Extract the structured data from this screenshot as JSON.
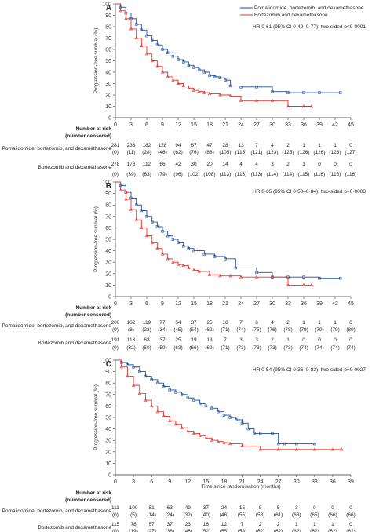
{
  "colors": {
    "pomalidomide": "#1f4e9c",
    "bortezomib": "#e8312a",
    "axis": "#333333"
  },
  "chart_data": [
    {
      "type": "line",
      "panel_label": "A",
      "ylabel": "Progression-free survival (%)",
      "xlabel": "",
      "xlim": [
        0,
        45
      ],
      "ylim": [
        0,
        100
      ],
      "xticks": [
        0,
        3,
        6,
        9,
        12,
        15,
        18,
        21,
        24,
        27,
        30,
        33,
        36,
        39,
        42,
        45
      ],
      "yticks": [
        0,
        10,
        20,
        30,
        40,
        50,
        60,
        70,
        80,
        90,
        100
      ],
      "legend": [
        "Pomalidomide, bortezomib, and dexamethasone",
        "Bortezomib and dexamethasone"
      ],
      "legend_position": "top-right",
      "annotation": "HR 0·61 (95% CI 0·49–0·77); two-sided p<0·0001",
      "series": [
        {
          "name": "Pomalidomide, bortezomib, and dexamethasone",
          "color_key": "pomalidomide",
          "x": [
            0,
            1,
            2,
            3,
            4,
            5,
            6,
            7,
            8,
            9,
            10,
            11,
            12,
            13,
            14,
            15,
            16,
            17,
            18,
            19,
            20,
            21,
            22,
            24,
            27,
            30,
            33,
            36,
            39,
            43
          ],
          "y": [
            100,
            97,
            92,
            87,
            82,
            77,
            72,
            68,
            64,
            60,
            57,
            54,
            51,
            49,
            46,
            44,
            42,
            40,
            37,
            36,
            35,
            33,
            28,
            27,
            27,
            23,
            22,
            22,
            22,
            22
          ]
        },
        {
          "name": "Bortezomib and dexamethasone",
          "color_key": "bortezomib",
          "x": [
            0,
            1,
            2,
            3,
            4,
            5,
            6,
            7,
            8,
            9,
            10,
            11,
            12,
            13,
            14,
            15,
            16,
            17,
            18,
            20,
            22,
            24,
            27,
            30,
            33,
            36,
            37.5
          ],
          "y": [
            100,
            94,
            87,
            78,
            70,
            63,
            56,
            50,
            45,
            40,
            36,
            33,
            30,
            28,
            26,
            24,
            23,
            22,
            21,
            20,
            19,
            15,
            15,
            15,
            10,
            10,
            10
          ]
        }
      ],
      "risk_table": {
        "header": [
          "Number at risk",
          "(number censored)"
        ],
        "times": [
          0,
          3,
          6,
          9,
          12,
          15,
          18,
          21,
          24,
          27,
          30,
          33,
          36,
          39,
          42,
          45
        ],
        "rows": [
          {
            "label": "Pomalidomide, bortezomib, and dexamethasone",
            "at_risk": [
              "281",
              "233",
              "182",
              "128",
              "94",
              "67",
              "47",
              "28",
              "13",
              "7",
              "4",
              "2",
              "1",
              "1",
              "1",
              "0"
            ],
            "censored": [
              "(0)",
              "(11)",
              "(28)",
              "(46)",
              "(62)",
              "(76)",
              "(88)",
              "(105)",
              "(115)",
              "(121)",
              "(123)",
              "(125)",
              "(126)",
              "(126)",
              "(126)",
              "(127)"
            ]
          },
          {
            "label": "Bortezomib and dexamethasone",
            "at_risk": [
              "278",
              "176",
              "112",
              "66",
              "42",
              "30",
              "20",
              "14",
              "4",
              "4",
              "3",
              "2",
              "1",
              "0",
              "0",
              "0"
            ],
            "censored": [
              "(0)",
              "(39)",
              "(63)",
              "(79)",
              "(96)",
              "(102)",
              "(108)",
              "(113)",
              "(113)",
              "(113)",
              "(114)",
              "(114)",
              "(115)",
              "(116)",
              "(116)",
              "(116)"
            ]
          }
        ]
      }
    },
    {
      "type": "line",
      "panel_label": "B",
      "ylabel": "Progression-free survival (%)",
      "xlabel": "",
      "xlim": [
        0,
        45
      ],
      "ylim": [
        0,
        100
      ],
      "xticks": [
        0,
        3,
        6,
        9,
        12,
        15,
        18,
        21,
        24,
        27,
        30,
        33,
        36,
        39,
        42,
        45
      ],
      "yticks": [
        0,
        10,
        20,
        30,
        40,
        50,
        60,
        70,
        80,
        90,
        100
      ],
      "annotation": "HR 0·65 (95% CI 0·50–0·84); two-sided p=0·0008",
      "series": [
        {
          "name": "",
          "color_key": "pomalidomide",
          "x": [
            0,
            1,
            2,
            3,
            4,
            5,
            6,
            7,
            8,
            9,
            10,
            11,
            12,
            13,
            14,
            15,
            17,
            19,
            21,
            23,
            27,
            30,
            33,
            36,
            39,
            43
          ],
          "y": [
            100,
            97,
            91,
            86,
            80,
            75,
            70,
            65,
            61,
            57,
            53,
            50,
            47,
            44,
            42,
            40,
            37,
            35,
            33,
            25,
            21,
            17,
            17,
            17,
            16,
            16
          ]
        },
        {
          "name": "",
          "color_key": "bortezomib",
          "x": [
            0,
            1,
            2,
            3,
            4,
            5,
            6,
            7,
            8,
            9,
            10,
            11,
            12,
            13,
            14,
            15,
            16,
            18,
            20,
            22,
            24,
            27,
            30,
            33,
            36,
            37.5
          ],
          "y": [
            100,
            93,
            85,
            76,
            67,
            60,
            53,
            47,
            42,
            37,
            33,
            30,
            28,
            27,
            25,
            23,
            22,
            19,
            18,
            18,
            17,
            17,
            17,
            10,
            10,
            10
          ]
        }
      ],
      "risk_table": {
        "header": [
          "Number at risk",
          "(number censored)"
        ],
        "times": [
          0,
          3,
          6,
          9,
          12,
          15,
          18,
          21,
          24,
          27,
          30,
          33,
          36,
          39,
          42,
          45
        ],
        "rows": [
          {
            "label": "Pomalidomide, bortezomib, and dexamethasone",
            "at_risk": [
              "200",
              "162",
              "119",
              "77",
              "54",
              "37",
              "25",
              "16",
              "7",
              "6",
              "4",
              "2",
              "1",
              "1",
              "1",
              "0"
            ],
            "censored": [
              "(0)",
              "(8)",
              "(22)",
              "(34)",
              "(45)",
              "(54)",
              "(62)",
              "(71)",
              "(74)",
              "(75)",
              "(76)",
              "(78)",
              "(79)",
              "(79)",
              "(79)",
              "(80)"
            ]
          },
          {
            "label": "Bortezomib and dexamethasone",
            "at_risk": [
              "191",
              "113",
              "63",
              "37",
              "25",
              "19",
              "13",
              "7",
              "3",
              "3",
              "2",
              "1",
              "0",
              "0",
              "0",
              "0"
            ],
            "censored": [
              "(0)",
              "(32)",
              "(50)",
              "(59)",
              "(63)",
              "(66)",
              "(69)",
              "(71)",
              "(73)",
              "(73)",
              "(73)",
              "(73)",
              "(74)",
              "(74)",
              "(74)",
              "(74)"
            ]
          }
        ]
      }
    },
    {
      "type": "line",
      "panel_label": "C",
      "ylabel": "Progression-free survival (%)",
      "xlabel": "Time since randomisation (months)",
      "xlim": [
        0,
        39
      ],
      "ylim": [
        0,
        100
      ],
      "xticks": [
        0,
        3,
        6,
        9,
        12,
        15,
        18,
        21,
        24,
        27,
        30,
        33,
        36,
        39
      ],
      "yticks": [
        0,
        10,
        20,
        30,
        40,
        50,
        60,
        70,
        80,
        90,
        100
      ],
      "annotation": "HR 0·54 (95% CI 0·36–0·82); two-sided p=0·0027",
      "series": [
        {
          "name": "",
          "color_key": "pomalidomide",
          "x": [
            0,
            1,
            2,
            3,
            4,
            5,
            6,
            7,
            8,
            9,
            10,
            11,
            12,
            13,
            14,
            15,
            16,
            17,
            18,
            19,
            20,
            21,
            22,
            23,
            24,
            26,
            27,
            28,
            30,
            33
          ],
          "y": [
            100,
            98,
            96,
            94,
            90,
            86,
            83,
            80,
            77,
            74,
            72,
            70,
            67,
            65,
            62,
            60,
            58,
            55,
            52,
            50,
            48,
            45,
            40,
            36,
            36,
            36,
            27,
            27,
            27,
            27
          ]
        },
        {
          "name": "",
          "color_key": "bortezomib",
          "x": [
            0,
            1,
            2,
            3,
            4,
            5,
            6,
            7,
            8,
            9,
            10,
            11,
            12,
            13,
            14,
            15,
            16,
            17,
            18,
            19,
            21,
            24,
            27,
            30,
            33,
            36,
            37.5
          ],
          "y": [
            100,
            94,
            86,
            78,
            71,
            65,
            60,
            55,
            51,
            47,
            44,
            41,
            38,
            36,
            34,
            32,
            30,
            29,
            28,
            27,
            25,
            22,
            22,
            22,
            22,
            22,
            22
          ]
        }
      ],
      "risk_table": {
        "header": [
          "Number at risk",
          "(number censored)"
        ],
        "times": [
          0,
          3,
          6,
          9,
          12,
          15,
          18,
          21,
          24,
          27,
          30,
          33,
          36,
          39
        ],
        "rows": [
          {
            "label": "Pomalidomide, bortezomib, and dexamethasone",
            "at_risk": [
              "111",
              "100",
              "81",
              "63",
              "49",
              "37",
              "24",
              "15",
              "8",
              "5",
              "3",
              "0",
              "0",
              "0"
            ],
            "censored": [
              "(0)",
              "(5)",
              "(14)",
              "(24)",
              "(32)",
              "(40)",
              "(46)",
              "(55)",
              "(58)",
              "(61)",
              "(63)",
              "(65)",
              "(66)",
              "(66)"
            ]
          },
          {
            "label": "Bortezomib and dexamethasone",
            "at_risk": [
              "115",
              "78",
              "57",
              "37",
              "23",
              "16",
              "12",
              "7",
              "2",
              "2",
              "1",
              "1",
              "1",
              "0"
            ],
            "censored": [
              "(0)",
              "(19)",
              "(27)",
              "(38)",
              "(48)",
              "(52)",
              "(55)",
              "(58)",
              "(62)",
              "(62)",
              "(62)",
              "(62)",
              "(62)",
              "(62)"
            ]
          }
        ]
      }
    }
  ]
}
